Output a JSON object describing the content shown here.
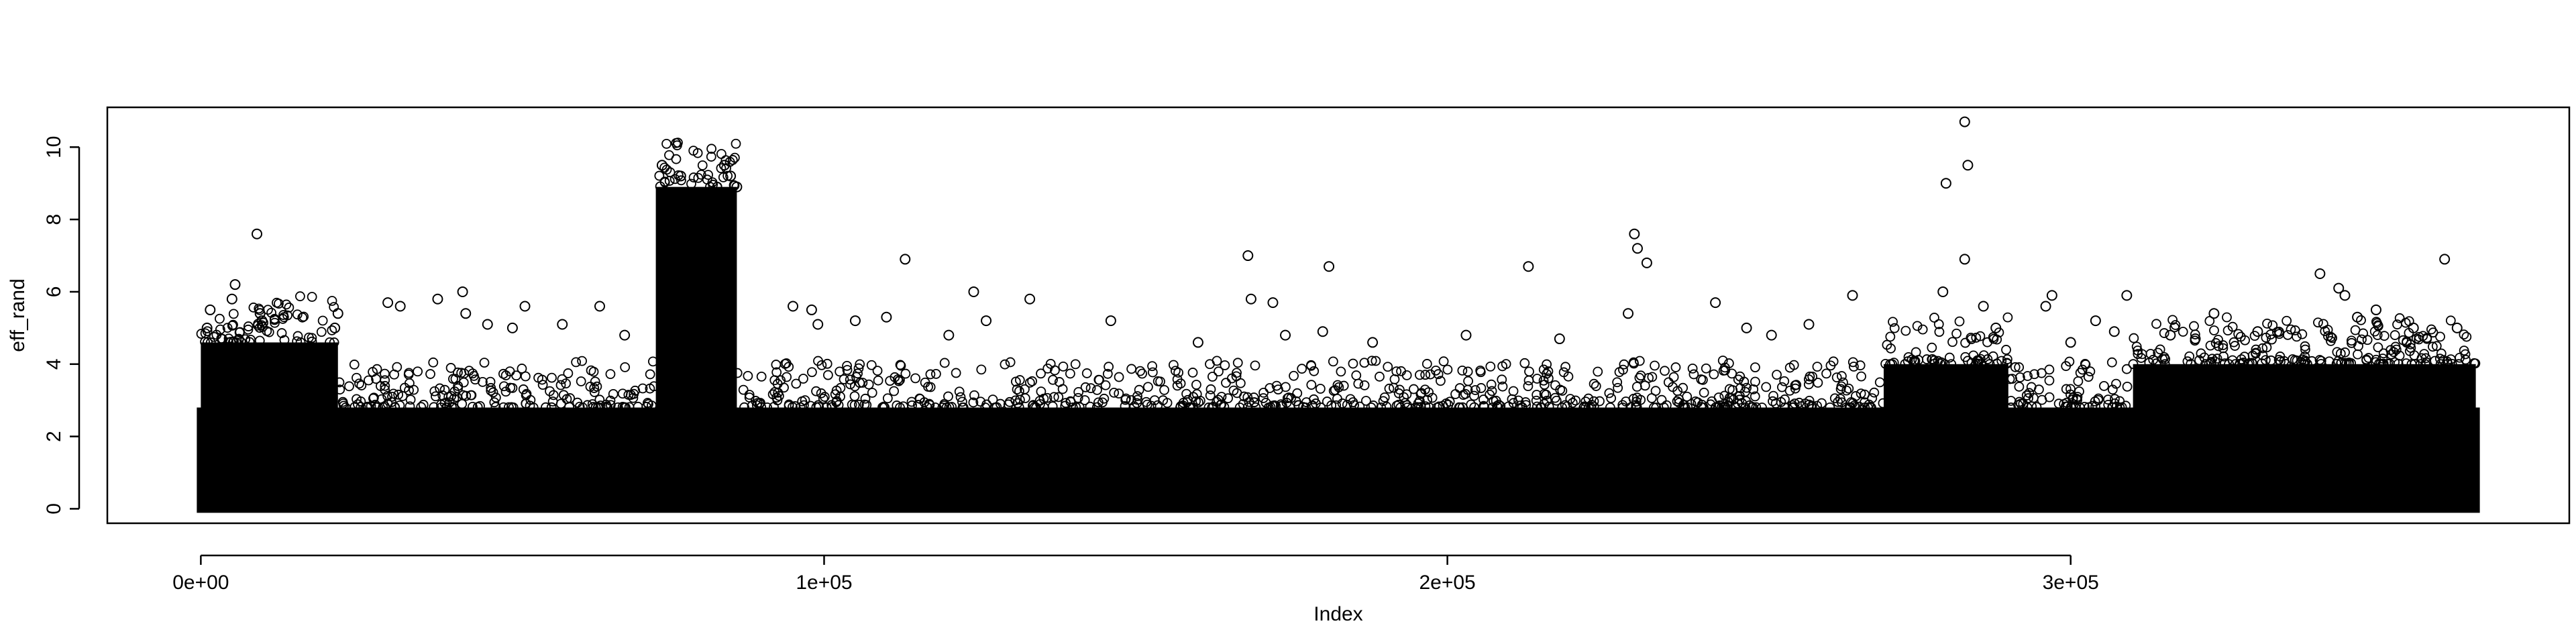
{
  "chart_data": {
    "type": "scatter",
    "title": "",
    "xlabel": "Index",
    "ylabel": "eff_rand",
    "xlim": [
      -15000,
      380000
    ],
    "ylim": [
      -0.4,
      11.1
    ],
    "x_ticks": [
      {
        "value": 0,
        "label": "0e+00"
      },
      {
        "value": 100000,
        "label": "1e+05"
      },
      {
        "value": 200000,
        "label": "2e+05"
      },
      {
        "value": 300000,
        "label": "3e+05"
      }
    ],
    "y_ticks": [
      {
        "value": 0,
        "label": "0"
      },
      {
        "value": 2,
        "label": "2"
      },
      {
        "value": 4,
        "label": "4"
      },
      {
        "value": 6,
        "label": "6"
      },
      {
        "value": 8,
        "label": "8"
      },
      {
        "value": 10,
        "label": "10"
      }
    ],
    "grid": false,
    "legend": "none",
    "marker": "open-circle",
    "n_points_approx": 365000,
    "x_range_of_data": [
      0,
      365000
    ],
    "dense_band": {
      "y_min": 0,
      "y_max": 2.8,
      "description": "solid black band of overlapping points across the full index range"
    },
    "dense_regions": [
      {
        "x_start": 0,
        "x_end": 22000,
        "y_max": 4.6
      },
      {
        "x_start": 73000,
        "x_end": 86000,
        "y_max": 8.9
      },
      {
        "x_start": 270000,
        "x_end": 290000,
        "y_max": 4.0
      },
      {
        "x_start": 310000,
        "x_end": 365000,
        "y_max": 4.0
      }
    ],
    "outliers": [
      {
        "x": 1000,
        "y": 5.0
      },
      {
        "x": 1500,
        "y": 5.5
      },
      {
        "x": 5000,
        "y": 5.8
      },
      {
        "x": 5500,
        "y": 6.2
      },
      {
        "x": 9000,
        "y": 7.6
      },
      {
        "x": 9500,
        "y": 5.4
      },
      {
        "x": 9800,
        "y": 5.2
      },
      {
        "x": 22000,
        "y": 5.4
      },
      {
        "x": 21500,
        "y": 5.0
      },
      {
        "x": 30000,
        "y": 5.7
      },
      {
        "x": 32000,
        "y": 5.6
      },
      {
        "x": 38000,
        "y": 5.8
      },
      {
        "x": 42000,
        "y": 6.0
      },
      {
        "x": 42500,
        "y": 5.4
      },
      {
        "x": 46000,
        "y": 5.1
      },
      {
        "x": 50000,
        "y": 5.0
      },
      {
        "x": 52000,
        "y": 5.6
      },
      {
        "x": 58000,
        "y": 5.1
      },
      {
        "x": 64000,
        "y": 5.6
      },
      {
        "x": 68000,
        "y": 4.8
      },
      {
        "x": 74000,
        "y": 9.5
      },
      {
        "x": 77000,
        "y": 9.2
      },
      {
        "x": 78000,
        "y": 8.6
      },
      {
        "x": 76500,
        "y": 8.0
      },
      {
        "x": 79500,
        "y": 7.2
      },
      {
        "x": 80000,
        "y": 7.9
      },
      {
        "x": 84000,
        "y": 9.5
      },
      {
        "x": 85000,
        "y": 9.2
      },
      {
        "x": 84500,
        "y": 8.3
      },
      {
        "x": 86000,
        "y": 8.9
      },
      {
        "x": 83500,
        "y": 7.8
      },
      {
        "x": 82000,
        "y": 7.6
      },
      {
        "x": 95000,
        "y": 5.6
      },
      {
        "x": 98000,
        "y": 5.5
      },
      {
        "x": 99000,
        "y": 5.1
      },
      {
        "x": 105000,
        "y": 5.2
      },
      {
        "x": 110000,
        "y": 5.3
      },
      {
        "x": 113000,
        "y": 6.9
      },
      {
        "x": 120000,
        "y": 4.8
      },
      {
        "x": 124000,
        "y": 6.0
      },
      {
        "x": 126000,
        "y": 5.2
      },
      {
        "x": 133000,
        "y": 5.8
      },
      {
        "x": 146000,
        "y": 5.2
      },
      {
        "x": 160000,
        "y": 4.6
      },
      {
        "x": 168000,
        "y": 7.0
      },
      {
        "x": 168500,
        "y": 5.8
      },
      {
        "x": 172000,
        "y": 5.7
      },
      {
        "x": 174000,
        "y": 4.8
      },
      {
        "x": 181000,
        "y": 6.7
      },
      {
        "x": 180000,
        "y": 4.9
      },
      {
        "x": 188000,
        "y": 4.6
      },
      {
        "x": 203000,
        "y": 4.8
      },
      {
        "x": 213000,
        "y": 6.7
      },
      {
        "x": 218000,
        "y": 4.7
      },
      {
        "x": 230000,
        "y": 7.6
      },
      {
        "x": 230500,
        "y": 7.2
      },
      {
        "x": 232000,
        "y": 6.8
      },
      {
        "x": 229000,
        "y": 5.4
      },
      {
        "x": 243000,
        "y": 5.7
      },
      {
        "x": 248000,
        "y": 5.0
      },
      {
        "x": 252000,
        "y": 4.8
      },
      {
        "x": 258000,
        "y": 5.1
      },
      {
        "x": 265000,
        "y": 5.9
      },
      {
        "x": 280000,
        "y": 9.0
      },
      {
        "x": 283000,
        "y": 10.7
      },
      {
        "x": 283500,
        "y": 9.5
      },
      {
        "x": 283000,
        "y": 6.9
      },
      {
        "x": 279500,
        "y": 6.0
      },
      {
        "x": 286000,
        "y": 5.6
      },
      {
        "x": 288000,
        "y": 5.0
      },
      {
        "x": 296000,
        "y": 5.6
      },
      {
        "x": 297000,
        "y": 5.9
      },
      {
        "x": 300000,
        "y": 4.6
      },
      {
        "x": 304000,
        "y": 5.2
      },
      {
        "x": 307000,
        "y": 4.9
      },
      {
        "x": 309000,
        "y": 5.9
      },
      {
        "x": 316000,
        "y": 4.8
      },
      {
        "x": 320000,
        "y": 4.7
      },
      {
        "x": 323000,
        "y": 5.4
      },
      {
        "x": 330000,
        "y": 4.9
      },
      {
        "x": 340000,
        "y": 6.5
      },
      {
        "x": 343000,
        "y": 6.1
      },
      {
        "x": 344000,
        "y": 5.9
      },
      {
        "x": 346000,
        "y": 5.3
      },
      {
        "x": 349000,
        "y": 5.5
      },
      {
        "x": 355000,
        "y": 5.0
      },
      {
        "x": 360000,
        "y": 6.9
      },
      {
        "x": 362000,
        "y": 5.0
      }
    ]
  }
}
